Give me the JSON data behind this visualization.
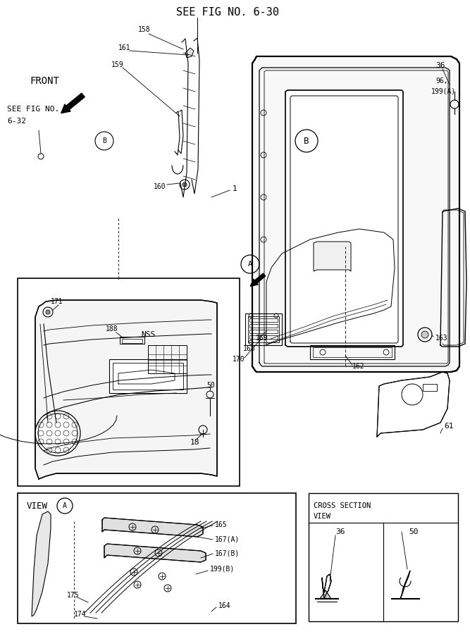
{
  "bg_color": "#ffffff",
  "fig_width": 6.67,
  "fig_height": 9.0,
  "top_label": "SEE FIG NO. 6-30",
  "front_label": "FRONT",
  "see_fig_label1": "SEE FIG NO.",
  "see_fig_label2": "6-32",
  "view_a_label": "VIEW",
  "cross_section_line1": "CROSS SECTION",
  "cross_section_line2": "VIEW",
  "nss_label": "NSS",
  "parts": {
    "1": "1",
    "18": "18",
    "36": "36",
    "50": "50",
    "61": "61",
    "96_199A": "96,\n199(A)",
    "158": "158",
    "159": "159",
    "160": "160",
    "161": "161",
    "162": "162",
    "163": "163",
    "164": "164",
    "165": "165",
    "167A": "167(A)",
    "167B": "167(B)",
    "168": "168",
    "169": "169",
    "170": "170",
    "171": "171",
    "174": "174",
    "175": "175",
    "188": "188",
    "199B": "199(B)"
  }
}
